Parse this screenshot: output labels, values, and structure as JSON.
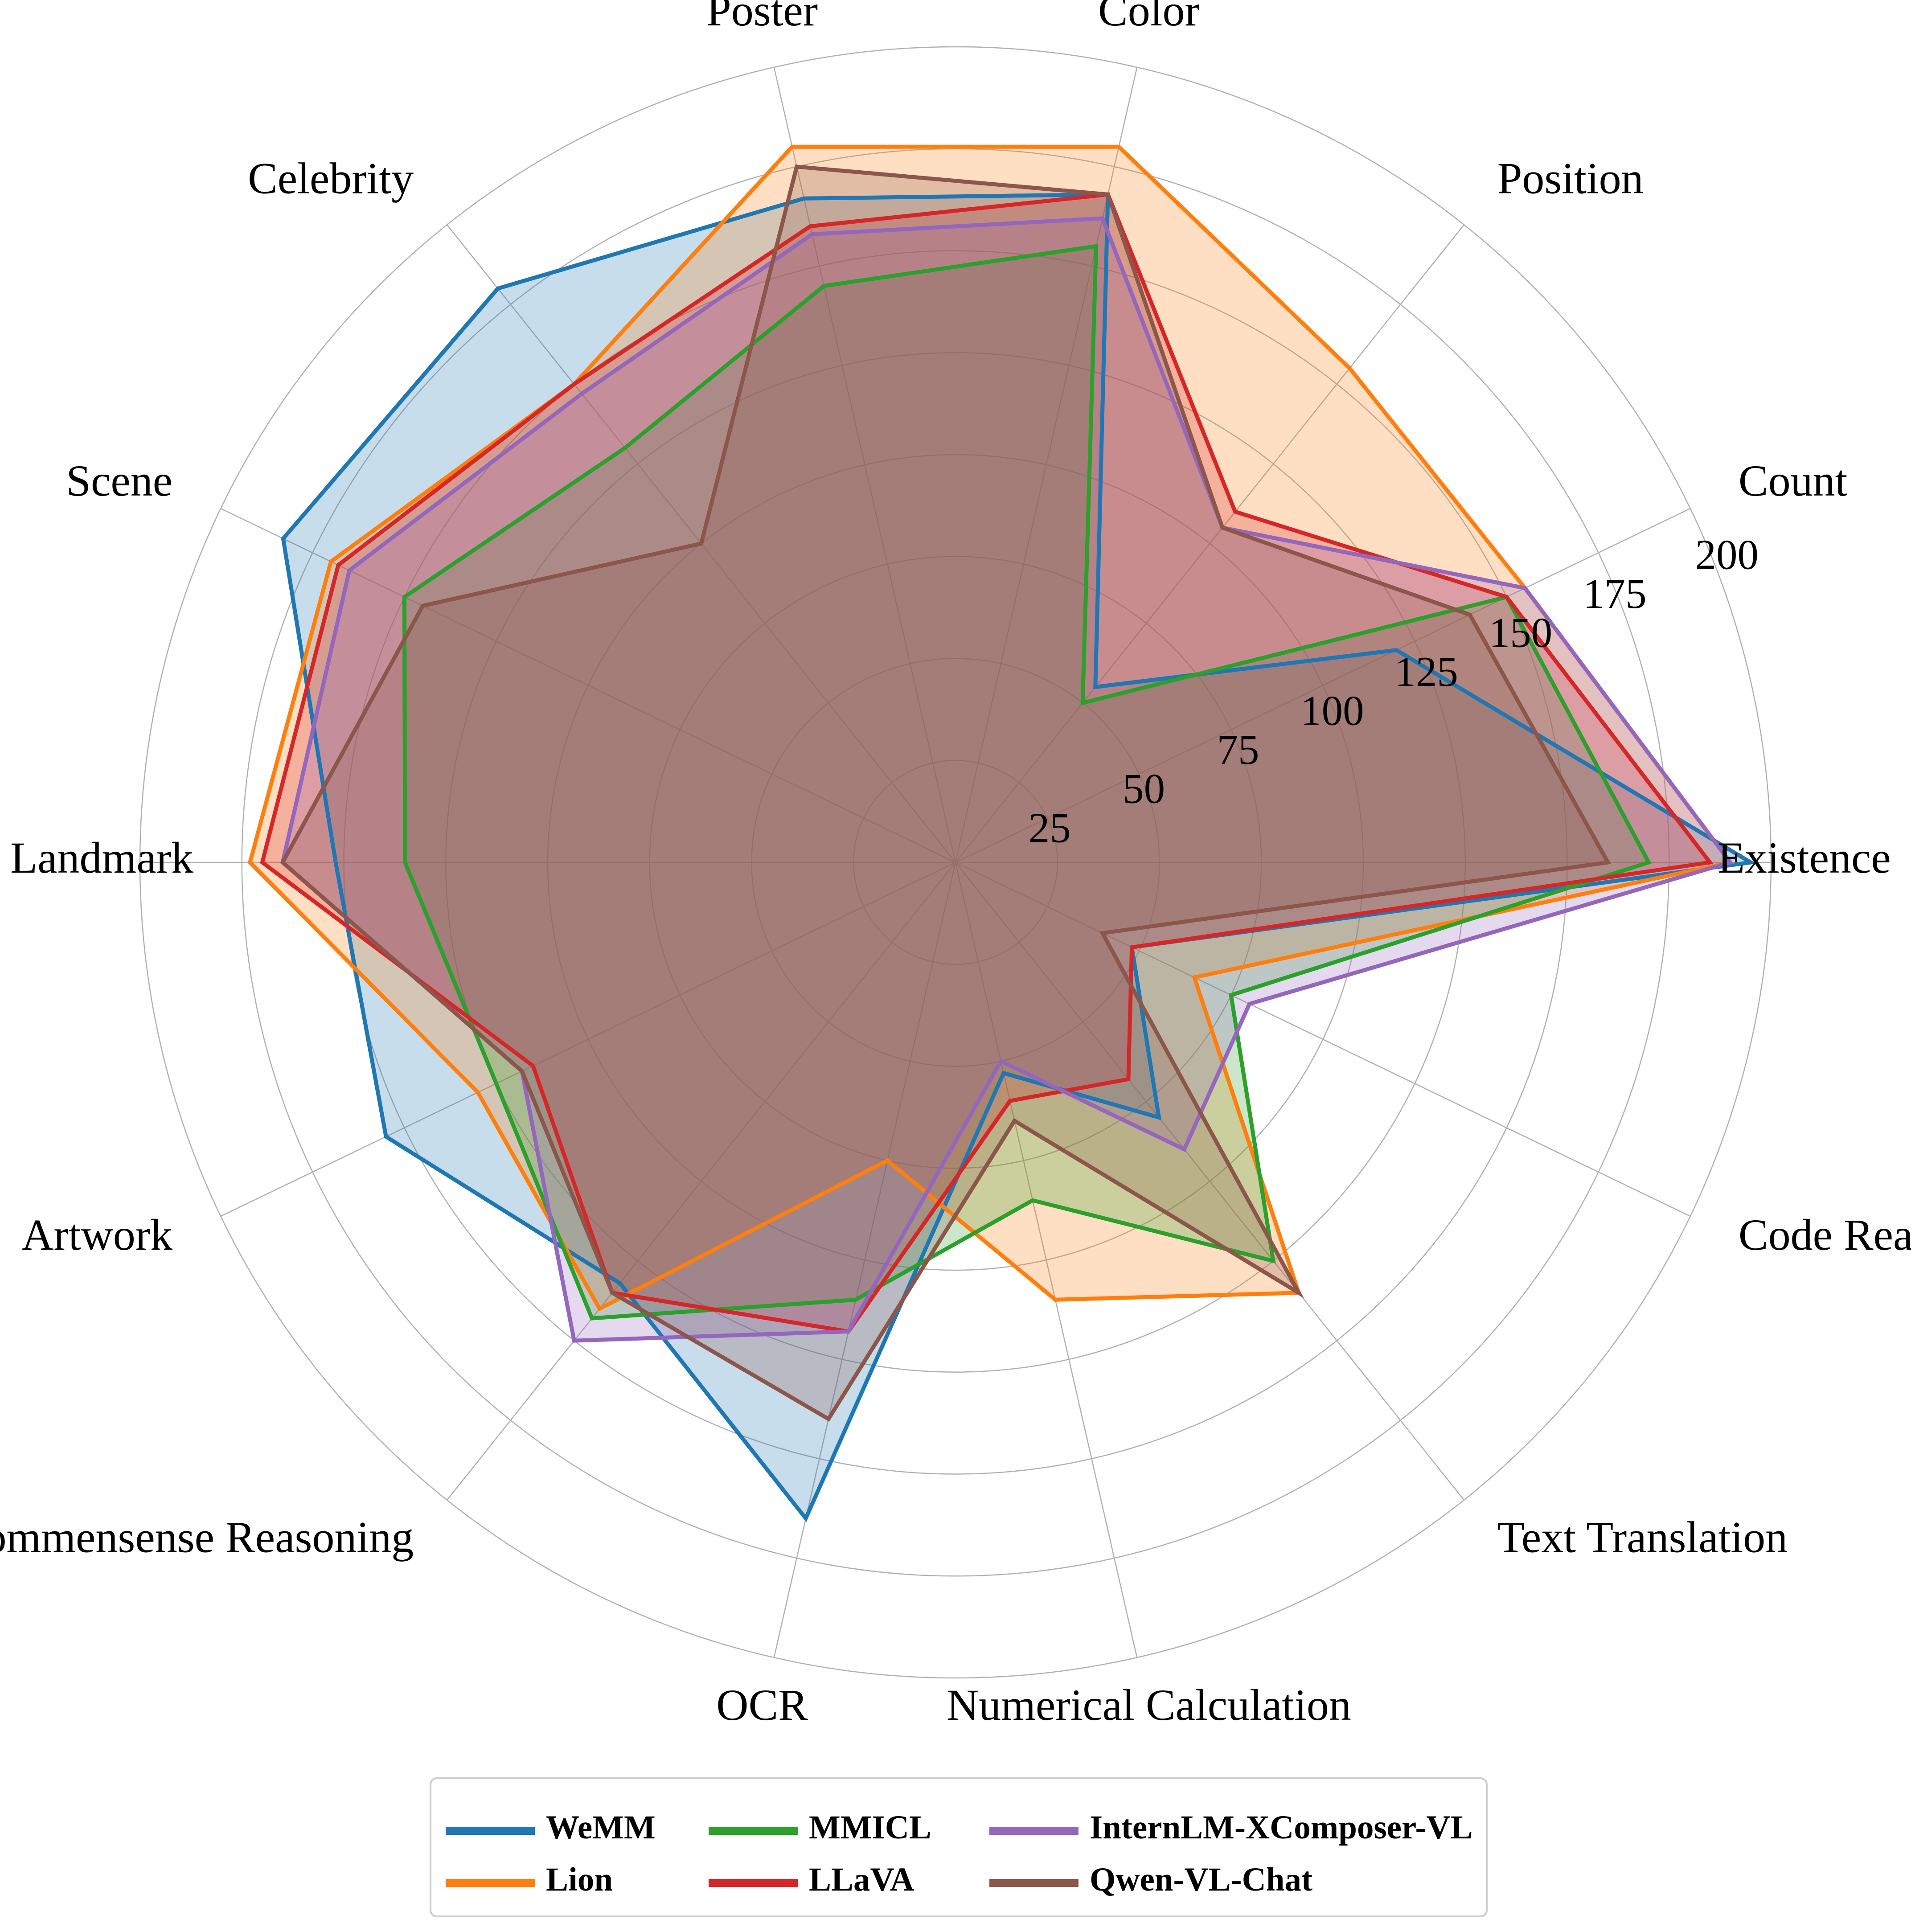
{
  "chart_data": {
    "type": "radar",
    "title": "",
    "categories": [
      "Existence",
      "Count",
      "Position",
      "Color",
      "Poster",
      "Celebrity",
      "Scene",
      "Landmark",
      "Artwork",
      "Commensense Reasoning",
      "OCR",
      "Numerical Calculation",
      "Text Translation",
      "Code Reasoning"
    ],
    "radial_ticks": [
      25,
      50,
      75,
      100,
      125,
      150,
      175,
      200
    ],
    "radial_tick_labels": [
      "25",
      "50",
      "75",
      "100",
      "125",
      "150",
      "175",
      "200"
    ],
    "rlim": [
      0,
      200
    ],
    "grid": true,
    "legend_position": "bottom-center",
    "series": [
      {
        "name": "WeMM",
        "color": "#1f77b4",
        "values": [
          195,
          120,
          55,
          168,
          167,
          180,
          183,
          152,
          155,
          132,
          165,
          53,
          80,
          48
        ]
      },
      {
        "name": "Lion",
        "color": "#ff7f0e",
        "values": [
          190,
          155,
          155,
          180,
          180,
          150,
          170,
          173,
          130,
          140,
          75,
          110,
          135,
          65
        ]
      },
      {
        "name": "MMICL",
        "color": "#2ca02c",
        "values": [
          170,
          150,
          50,
          155,
          145,
          130,
          150,
          135,
          125,
          143,
          110,
          85,
          125,
          75
        ]
      },
      {
        "name": "LLaVA",
        "color": "#d62728",
        "values": [
          185,
          150,
          110,
          168,
          160,
          150,
          168,
          170,
          115,
          135,
          118,
          60,
          68,
          48
        ]
      },
      {
        "name": "InternLM-XComposer-VL",
        "color": "#9467bd",
        "values": [
          190,
          155,
          105,
          162,
          158,
          147,
          165,
          165,
          118,
          150,
          118,
          50,
          90,
          80
        ]
      },
      {
        "name": "Qwen-VL-Chat",
        "color": "#8c564b",
        "values": [
          160,
          140,
          105,
          168,
          175,
          100,
          145,
          165,
          118,
          135,
          140,
          65,
          135,
          40
        ]
      }
    ]
  }
}
